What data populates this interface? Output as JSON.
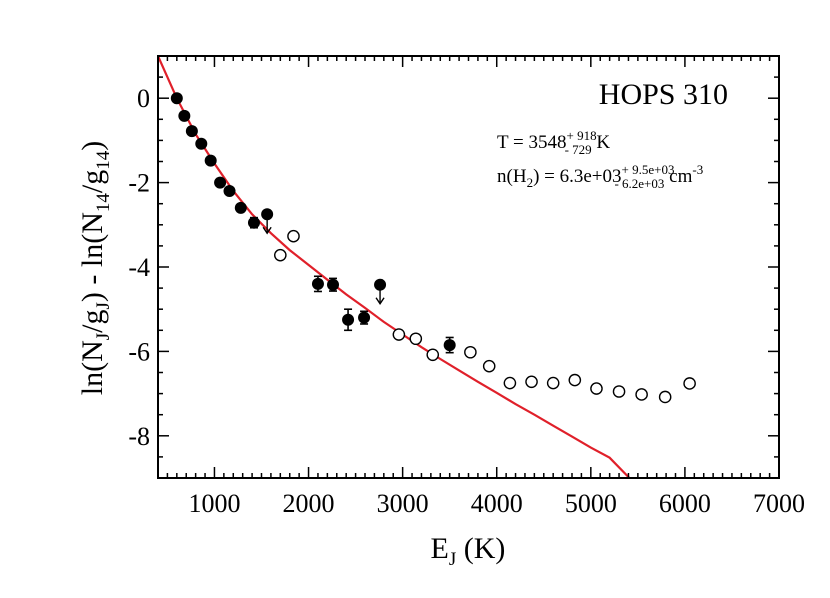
{
  "chart_data": {
    "type": "scatter",
    "title": "HOPS 310",
    "xlabel": {
      "base": "E",
      "sub": "J",
      "tail": " (K)"
    },
    "ylabel": {
      "parts": [
        {
          "t": "ln(N",
          "sub": false
        },
        {
          "t": "J",
          "sub": true
        },
        {
          "t": "/g",
          "sub": false
        },
        {
          "t": "J",
          "sub": true
        },
        {
          "t": ") - ln(N",
          "sub": false
        },
        {
          "t": "14",
          "sub": true
        },
        {
          "t": "/g",
          "sub": false
        },
        {
          "t": "14",
          "sub": true
        },
        {
          "t": ")",
          "sub": false
        }
      ]
    },
    "xlim": [
      400,
      7000
    ],
    "ylim": [
      -9,
      1
    ],
    "xticks": [
      1000,
      2000,
      3000,
      4000,
      5000,
      6000,
      7000
    ],
    "yticks": [
      0,
      -2,
      -4,
      -6,
      -8
    ],
    "xtick_labels": [
      "1000",
      "2000",
      "3000",
      "4000",
      "5000",
      "6000",
      "7000"
    ],
    "ytick_labels": [
      "0",
      "-2",
      "-4",
      "-6",
      "-8"
    ],
    "annotations": {
      "temperature": {
        "prefix": "T = 3548",
        "sup": "+ 918",
        "sub": "- 729",
        "suffix": "  K"
      },
      "density": {
        "prefix": "n(H",
        "h_sub": "2",
        "mid": ") =  6.3e+03",
        "sup": "+ 9.5e+03",
        "sub": "- 6.2e+03",
        "suffix": " cm",
        "unit_sup": "-3"
      }
    },
    "series": [
      {
        "marker": "filled-circle",
        "points": [
          {
            "x": 600,
            "y": 0.0
          },
          {
            "x": 680,
            "y": -0.42
          },
          {
            "x": 760,
            "y": -0.78
          },
          {
            "x": 860,
            "y": -1.08
          },
          {
            "x": 960,
            "y": -1.48
          },
          {
            "x": 1060,
            "y": -2.0
          },
          {
            "x": 1160,
            "y": -2.2
          },
          {
            "x": 1280,
            "y": -2.6
          },
          {
            "x": 1420,
            "y": -2.95,
            "err": 0.12
          },
          {
            "x": 1560,
            "y": -2.75,
            "upper_limit": true
          },
          {
            "x": 2100,
            "y": -4.4,
            "err": 0.18
          },
          {
            "x": 2260,
            "y": -4.42,
            "err": 0.15
          },
          {
            "x": 2420,
            "y": -5.25,
            "err": 0.25
          },
          {
            "x": 2590,
            "y": -5.2,
            "err": 0.15
          },
          {
            "x": 2760,
            "y": -4.42,
            "upper_limit": true
          },
          {
            "x": 3500,
            "y": -5.85,
            "err": 0.18
          }
        ]
      },
      {
        "marker": "open-circle",
        "points": [
          {
            "x": 1700,
            "y": -3.72
          },
          {
            "x": 1840,
            "y": -3.27
          },
          {
            "x": 2960,
            "y": -5.6
          },
          {
            "x": 3140,
            "y": -5.7
          },
          {
            "x": 3320,
            "y": -6.08
          },
          {
            "x": 3720,
            "y": -6.02
          },
          {
            "x": 3920,
            "y": -6.35
          },
          {
            "x": 4140,
            "y": -6.75
          },
          {
            "x": 4370,
            "y": -6.72
          },
          {
            "x": 4600,
            "y": -6.75
          },
          {
            "x": 4830,
            "y": -6.68
          },
          {
            "x": 5060,
            "y": -6.88
          },
          {
            "x": 5300,
            "y": -6.95
          },
          {
            "x": 5540,
            "y": -7.02
          },
          {
            "x": 5790,
            "y": -7.08
          },
          {
            "x": 6050,
            "y": -6.76
          }
        ]
      }
    ],
    "fit_curve": {
      "color": "#e0202a",
      "points": [
        {
          "x": 400,
          "y": 1.0
        },
        {
          "x": 600,
          "y": 0.0
        },
        {
          "x": 800,
          "y": -0.85
        },
        {
          "x": 1000,
          "y": -1.55
        },
        {
          "x": 1200,
          "y": -2.2
        },
        {
          "x": 1400,
          "y": -2.75
        },
        {
          "x": 1600,
          "y": -3.2
        },
        {
          "x": 1800,
          "y": -3.6
        },
        {
          "x": 2000,
          "y": -3.95
        },
        {
          "x": 2200,
          "y": -4.3
        },
        {
          "x": 2400,
          "y": -4.65
        },
        {
          "x": 2600,
          "y": -4.97
        },
        {
          "x": 2800,
          "y": -5.3
        },
        {
          "x": 3000,
          "y": -5.6
        },
        {
          "x": 3200,
          "y": -5.9
        },
        {
          "x": 3400,
          "y": -6.18
        },
        {
          "x": 3600,
          "y": -6.45
        },
        {
          "x": 3800,
          "y": -6.72
        },
        {
          "x": 4000,
          "y": -6.98
        },
        {
          "x": 4200,
          "y": -7.25
        },
        {
          "x": 4400,
          "y": -7.5
        },
        {
          "x": 4600,
          "y": -7.76
        },
        {
          "x": 4800,
          "y": -8.02
        },
        {
          "x": 5000,
          "y": -8.28
        },
        {
          "x": 5200,
          "y": -8.52
        },
        {
          "x": 5410,
          "y": -9.0
        }
      ]
    },
    "grid": false,
    "legend": "none"
  }
}
